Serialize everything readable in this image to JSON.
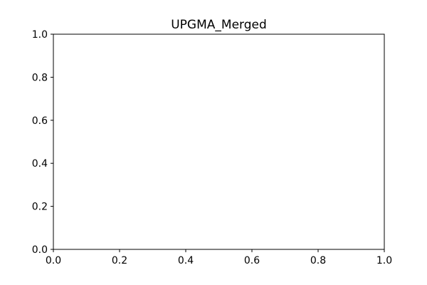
{
  "chart_data": {
    "type": "line",
    "title": "UPGMA_Merged",
    "xlabel": "",
    "ylabel": "",
    "series": [],
    "xlim": [
      0.0,
      1.0
    ],
    "ylim": [
      0.0,
      1.0
    ],
    "x_ticks": [
      0.0,
      0.2,
      0.4,
      0.6,
      0.8,
      1.0
    ],
    "y_ticks": [
      0.0,
      0.2,
      0.4,
      0.6,
      0.8,
      1.0
    ],
    "x_tick_labels": [
      "0.0",
      "0.2",
      "0.4",
      "0.6",
      "0.8",
      "1.0"
    ],
    "y_tick_labels": [
      "0.0",
      "0.2",
      "0.4",
      "0.6",
      "0.8",
      "1.0"
    ],
    "grid": false,
    "legend": "none"
  },
  "colors": {
    "background": "#ffffff",
    "axes": "#000000"
  }
}
